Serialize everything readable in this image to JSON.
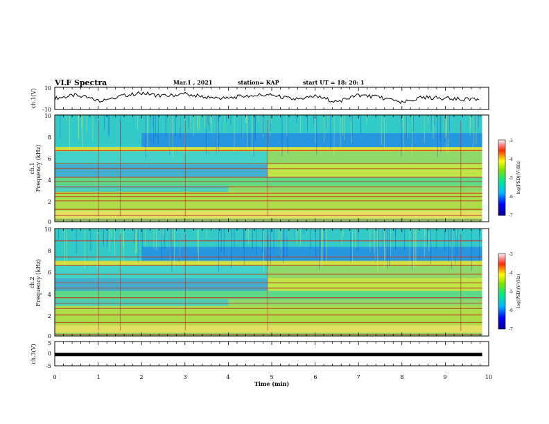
{
  "header": {
    "title": "VLF Spectra",
    "date": "Mar.1 , 2021",
    "station": "station= KAP",
    "start": "start  UT =   18: 20: 1"
  },
  "chart_data": [
    {
      "id": "ch1-waveform",
      "type": "line",
      "ylabel": "ch.1(V)",
      "ylim": [
        -10,
        10
      ],
      "ytick_labels": [
        "10",
        "-10"
      ],
      "xlim": [
        0,
        10
      ],
      "x": [
        0,
        0.5,
        1,
        1.5,
        2,
        2.5,
        3,
        3.5,
        4,
        4.5,
        5,
        5.5,
        6,
        6.5,
        7,
        7.5,
        8,
        8.5,
        9,
        9.5,
        9.8
      ],
      "values": [
        0,
        3,
        -2,
        2,
        5,
        2,
        4,
        1,
        0,
        3,
        3,
        -1,
        2,
        -3,
        3,
        1,
        -4,
        1,
        0,
        -1,
        -1
      ]
    },
    {
      "id": "ch1-spectrogram",
      "type": "heatmap",
      "ylabel": "ch.1",
      "ylabel2": "Frequency (kHz)",
      "ylim": [
        0,
        10
      ],
      "ytick_labels": [
        "0",
        "2",
        "4",
        "6",
        "8",
        "10"
      ],
      "xlim": [
        0,
        10
      ],
      "colorbar": {
        "label": "log(PSD)(V²/Hz)",
        "range": [
          -7,
          -3
        ],
        "tick_labels": [
          "-3",
          "-4",
          "-5",
          "-6",
          "-7"
        ]
      }
    },
    {
      "id": "ch2-spectrogram",
      "type": "heatmap",
      "ylabel": "ch.2",
      "ylabel2": "Frequency (kHz)",
      "ylim": [
        0,
        10
      ],
      "ytick_labels": [
        "0",
        "2",
        "4",
        "6",
        "8",
        "10"
      ],
      "xlim": [
        0,
        10
      ],
      "colorbar": {
        "label": "log(PSD)(V²/Hz)",
        "range": [
          -7,
          -3
        ],
        "tick_labels": [
          "-3",
          "-4",
          "-5",
          "-6",
          "-7"
        ]
      }
    },
    {
      "id": "ch3-waveform",
      "type": "line",
      "ylabel": "ch.3(V)",
      "ylim": [
        -5,
        5
      ],
      "ytick_labels": [
        "5",
        "0",
        "-5"
      ],
      "xlim": [
        0,
        9.85
      ],
      "values": [
        -0.2,
        -0.2
      ]
    }
  ],
  "xaxis": {
    "label": "Time  (min)",
    "tick_labels": [
      "0",
      "1",
      "2",
      "3",
      "4",
      "5",
      "6",
      "7",
      "8",
      "9",
      "10"
    ]
  }
}
